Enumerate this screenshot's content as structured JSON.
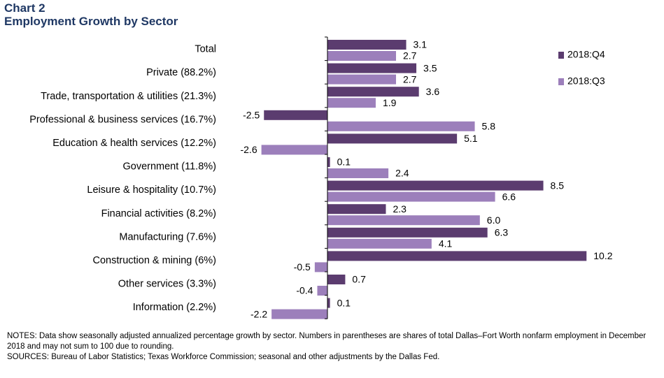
{
  "header": {
    "chart_number": "Chart 2",
    "title": "Employment Growth by Sector"
  },
  "footer": {
    "notes": "NOTES: Data show seasonally adjusted annualized percentage growth by sector. Numbers in parentheses are shares of total Dallas–Fort Worth nonfarm employment in December 2018 and may not sum to 100 due to rounding.",
    "sources": "SOURCES: Bureau of Labor Statistics; Texas Workforce Commission; seasonal and other adjustments by the Dallas Fed."
  },
  "colors": {
    "q4": "#5b3c6f",
    "q3": "#9c7fbb",
    "title": "#1f3864"
  },
  "chart_data": {
    "type": "bar",
    "orientation": "horizontal",
    "title": "Employment Growth by Sector",
    "categories": [
      "Total",
      "Private (88.2%)",
      "Trade, transportation & utilities (21.3%)",
      "Professional & business services (16.7%)",
      "Education & health services (12.2%)",
      "Government (11.8%)",
      "Leisure & hospitality (10.7%)",
      "Financial activities (8.2%)",
      "Manufacturing (7.6%)",
      "Construction & mining (6%)",
      "Other services (3.3%)",
      "Information (2.2%)"
    ],
    "series": [
      {
        "name": "2018:Q4",
        "values": [
          3.1,
          3.5,
          3.6,
          -2.5,
          5.1,
          0.1,
          8.5,
          2.3,
          6.3,
          10.2,
          0.7,
          0.1
        ],
        "labels": [
          "3.1",
          "3.5",
          "3.6",
          "-2.5",
          "5.1",
          "0.1",
          "8.5",
          "2.3",
          "6.3",
          "10.2",
          "0.7",
          "0.1"
        ]
      },
      {
        "name": "2018:Q3",
        "values": [
          2.7,
          2.7,
          1.9,
          5.8,
          -2.6,
          2.4,
          6.6,
          6.0,
          4.1,
          -0.5,
          -0.4,
          -2.2
        ],
        "labels": [
          "2.7",
          "2.7",
          "1.9",
          "5.8",
          "-2.6",
          "2.4",
          "6.6",
          "6.0",
          "4.1",
          "-0.5",
          "-0.4",
          "-2.2"
        ]
      }
    ],
    "xlim": [
      -2.6,
      10.2
    ],
    "legend_position": "top-right",
    "grid": false
  }
}
